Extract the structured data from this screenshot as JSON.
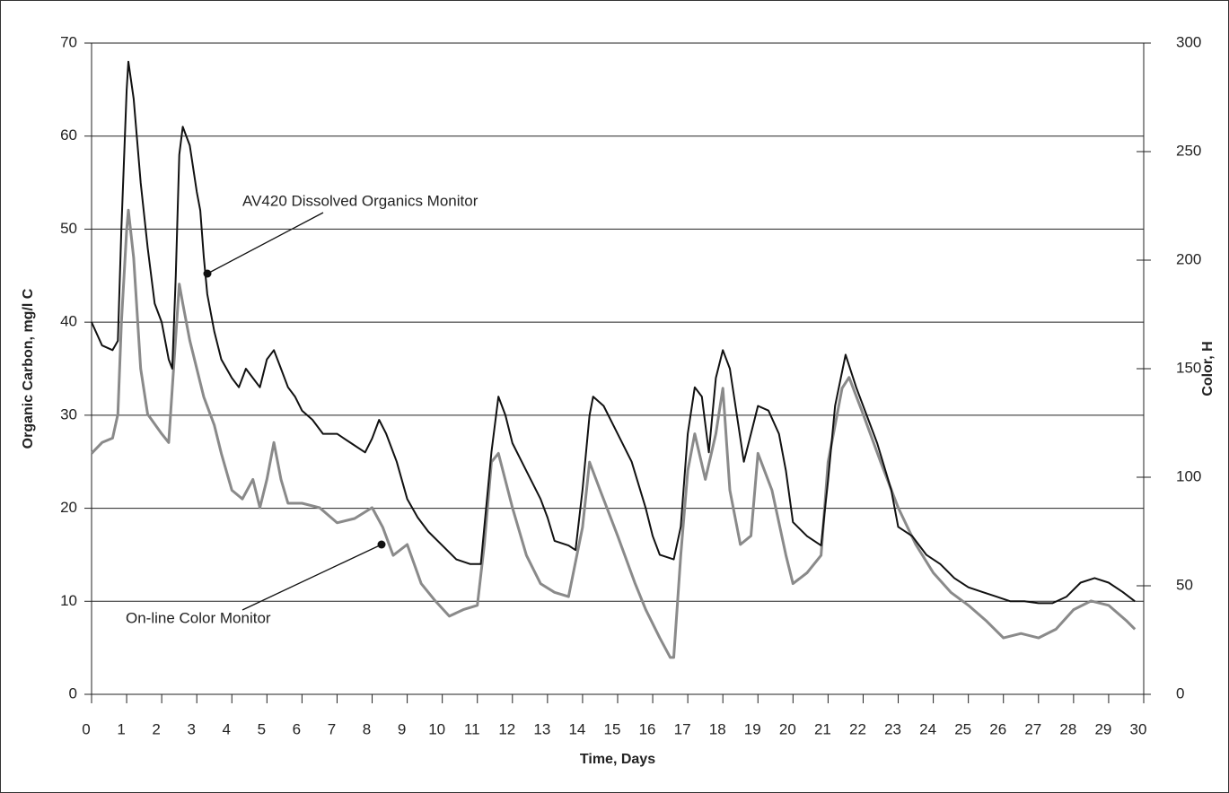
{
  "chart_data": {
    "type": "line",
    "x_label": "Time, Days",
    "y_label": "Organic Carbon, mg/l C",
    "y2_label": "Color, H",
    "xlim": [
      0,
      30
    ],
    "xticks": [
      0,
      1,
      2,
      3,
      4,
      5,
      6,
      7,
      8,
      9,
      10,
      11,
      12,
      13,
      14,
      15,
      16,
      17,
      18,
      19,
      20,
      21,
      22,
      23,
      24,
      25,
      26,
      27,
      28,
      29,
      30
    ],
    "ylim": [
      0,
      70
    ],
    "yticks": [
      0,
      10,
      20,
      30,
      40,
      50,
      60,
      70
    ],
    "y2lim": [
      0,
      300
    ],
    "y2ticks": [
      0,
      50,
      100,
      150,
      200,
      250,
      300
    ],
    "grid": true,
    "annotations": [
      "AV420 Dissolved Organics Monitor",
      "On-line Color Monitor"
    ],
    "series": [
      {
        "name": "AV420 Dissolved Organics Monitor",
        "color": "#111111",
        "axis": "y",
        "x": [
          0,
          0.3,
          0.6,
          0.75,
          0.85,
          1.0,
          1.05,
          1.2,
          1.4,
          1.6,
          1.8,
          2.0,
          2.2,
          2.3,
          2.4,
          2.5,
          2.6,
          2.8,
          3.0,
          3.1,
          3.2,
          3.3,
          3.5,
          3.7,
          4.0,
          4.2,
          4.4,
          4.6,
          4.8,
          5.0,
          5.2,
          5.4,
          5.6,
          5.8,
          6.0,
          6.3,
          6.6,
          7.0,
          7.4,
          7.8,
          8.0,
          8.2,
          8.4,
          8.7,
          9.0,
          9.3,
          9.6,
          10.0,
          10.4,
          10.8,
          11.1,
          11.2,
          11.4,
          11.6,
          11.8,
          12.0,
          12.4,
          12.8,
          13.0,
          13.2,
          13.6,
          13.8,
          14.0,
          14.2,
          14.3,
          14.6,
          15.0,
          15.4,
          15.8,
          16.0,
          16.2,
          16.6,
          16.8,
          17.0,
          17.2,
          17.4,
          17.6,
          17.8,
          18.0,
          18.2,
          18.4,
          18.6,
          18.8,
          19.0,
          19.3,
          19.6,
          19.8,
          20.0,
          20.4,
          20.8,
          21.0,
          21.2,
          21.5,
          21.8,
          22.0,
          22.4,
          22.8,
          23.0,
          23.4,
          23.8,
          24.2,
          24.6,
          25.0,
          25.4,
          25.8,
          26.2,
          26.6,
          27.0,
          27.4,
          27.8,
          28.2,
          28.6,
          29.0,
          29.4,
          29.75
        ],
        "values": [
          40,
          37.5,
          37,
          38,
          50,
          65,
          68,
          64,
          55,
          48,
          42,
          40,
          36,
          35,
          45,
          58,
          61,
          59,
          54,
          52,
          47,
          43,
          39,
          36,
          34,
          33,
          35,
          34,
          33,
          36,
          37,
          35,
          33,
          32,
          30.5,
          29.5,
          28,
          28,
          27,
          26,
          27.5,
          29.5,
          28,
          25,
          21,
          19,
          17.5,
          16,
          14.5,
          14,
          14,
          18,
          26,
          32,
          30,
          27,
          24,
          21,
          19,
          16.5,
          16,
          15.5,
          22,
          30,
          32,
          31,
          28,
          25,
          20,
          17,
          15,
          14.5,
          18,
          28,
          33,
          32,
          26,
          34,
          37,
          35,
          30,
          25,
          28,
          31,
          30.5,
          28,
          24,
          18.5,
          17,
          16,
          23,
          31,
          36.5,
          33,
          31,
          27,
          22,
          18,
          17,
          15,
          14,
          12.5,
          11.5,
          11,
          10.5,
          10,
          10,
          9.8,
          9.8,
          10.5,
          12,
          12.5,
          12,
          11,
          10
        ]
      },
      {
        "name": "On-line Color Monitor",
        "color": "#8a8a8a",
        "axis": "y2",
        "x": [
          0,
          0.3,
          0.6,
          0.75,
          0.85,
          1.0,
          1.05,
          1.2,
          1.4,
          1.6,
          2.0,
          2.2,
          2.3,
          2.5,
          2.6,
          2.8,
          3.0,
          3.2,
          3.5,
          3.7,
          4.0,
          4.3,
          4.6,
          4.8,
          5.0,
          5.2,
          5.4,
          5.6,
          6.0,
          6.5,
          7.0,
          7.5,
          8.0,
          8.3,
          8.6,
          9.0,
          9.4,
          9.8,
          10.2,
          10.6,
          11.0,
          11.2,
          11.4,
          11.6,
          12.0,
          12.4,
          12.8,
          13.2,
          13.6,
          14.0,
          14.2,
          14.5,
          15.0,
          15.5,
          15.8,
          16.2,
          16.5,
          16.6,
          16.8,
          17.0,
          17.2,
          17.5,
          17.8,
          18.0,
          18.2,
          18.5,
          18.8,
          19.0,
          19.4,
          19.8,
          20.0,
          20.4,
          20.8,
          21.0,
          21.4,
          21.6,
          22.0,
          22.5,
          23.0,
          23.5,
          24.0,
          24.5,
          25.0,
          25.5,
          26.0,
          26.5,
          27.0,
          27.5,
          28.0,
          28.5,
          29.0,
          29.5,
          29.75
        ],
        "values": [
          111,
          116,
          118,
          129,
          171,
          214,
          223,
          201,
          150,
          129,
          120,
          116,
          141,
          189,
          180,
          163,
          150,
          137,
          124,
          111,
          94,
          90,
          99,
          86,
          99,
          116,
          99,
          88,
          88,
          86,
          79,
          81,
          86,
          77,
          64,
          69,
          51,
          43,
          36,
          39,
          41,
          69,
          107,
          111,
          86,
          64,
          51,
          47,
          45,
          77,
          107,
          94,
          73,
          51,
          39,
          26,
          17,
          17,
          64,
          103,
          120,
          99,
          120,
          141,
          94,
          69,
          73,
          111,
          94,
          64,
          51,
          56,
          64,
          107,
          141,
          146,
          129,
          107,
          86,
          69,
          56,
          47,
          41,
          34,
          26,
          28,
          26,
          30,
          39,
          43,
          41,
          34,
          30
        ]
      }
    ]
  }
}
